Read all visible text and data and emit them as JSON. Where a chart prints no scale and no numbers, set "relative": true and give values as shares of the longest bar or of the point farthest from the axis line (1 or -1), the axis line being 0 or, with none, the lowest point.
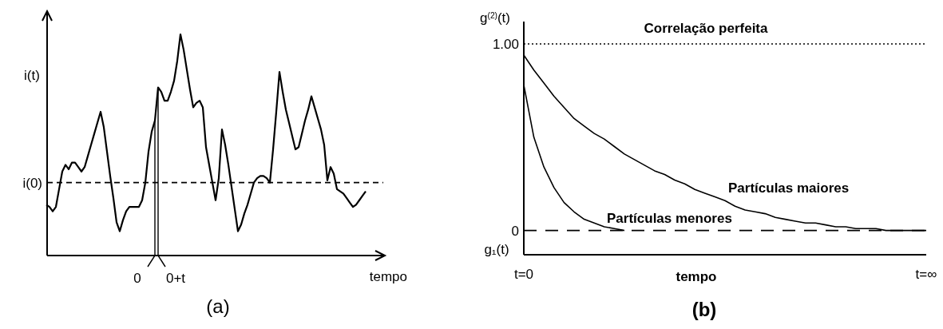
{
  "chart_data": [
    {
      "type": "line",
      "title": "(a)",
      "xlabel": "tempo",
      "ylabel": "i(t)",
      "relative": true,
      "annotations": [
        "0",
        "0+t"
      ],
      "line_style": "solid",
      "categories": [
        null,
        null,
        null,
        null,
        null,
        null,
        null,
        null,
        null,
        null,
        null,
        null,
        null,
        null,
        null,
        null,
        null,
        null,
        null,
        null,
        null,
        null,
        null,
        null,
        null,
        null,
        null,
        null,
        null,
        null,
        null,
        null,
        null,
        null,
        null,
        null,
        null,
        null,
        null,
        null,
        null,
        null,
        null,
        null,
        null,
        null,
        null,
        null,
        null,
        null,
        null,
        null,
        null,
        null,
        null,
        null,
        null,
        null,
        null,
        null,
        null,
        null,
        null,
        null,
        null,
        null,
        null,
        null,
        null,
        null,
        null,
        null,
        null,
        null,
        null,
        null,
        null,
        null,
        null,
        null,
        null,
        null,
        null,
        null,
        null,
        null,
        null,
        null,
        null,
        null,
        null,
        null,
        null,
        null,
        null,
        null,
        null,
        null,
        null,
        null,
        null
      ],
      "series": [
        {
          "color": "#000000",
          "values": [
            0.23,
            0.22,
            0.2,
            0.22,
            0.3,
            0.38,
            0.41,
            0.39,
            0.42,
            0.42,
            0.4,
            0.38,
            0.4,
            0.45,
            0.5,
            0.55,
            0.6,
            0.65,
            0.58,
            0.47,
            0.36,
            0.26,
            0.15,
            0.11,
            0.16,
            0.2,
            0.22,
            0.22,
            0.22,
            0.22,
            0.25,
            0.33,
            0.47,
            0.56,
            0.61,
            0.76,
            0.74,
            0.7,
            0.7,
            0.74,
            0.79,
            0.88,
            1,
            0.93,
            0.84,
            0.75,
            0.67,
            0.69,
            0.7,
            0.67,
            0.49,
            0.41,
            0.33,
            0.25,
            0.35,
            0.57,
            0.5,
            0.41,
            0.31,
            0.21,
            0.11,
            0.14,
            0.19,
            0.23,
            0.28,
            0.33,
            0.35,
            0.36,
            0.36,
            0.35,
            0.33,
            0.48,
            0.65,
            0.83,
            0.74,
            0.66,
            0.6,
            0.54,
            0.48,
            0.49,
            0.55,
            0.61,
            0.66,
            0.72,
            0.67,
            0.62,
            0.57,
            0.5,
            0.34,
            0.4,
            0.37,
            0.3,
            0.29,
            0.28,
            0.26,
            0.24,
            0.22,
            0.23,
            0.25,
            0.27,
            0.29
          ]
        }
      ],
      "ref_lines": [
        {
          "axis": "y",
          "value": 0.33,
          "label": "i(0)",
          "line_style": "dashed"
        }
      ]
    },
    {
      "type": "line",
      "title": "(b)",
      "xlabel": "tempo",
      "ylabel": "g$^{(2)}$(t)",
      "annotations": [
        "g₁(t)"
      ],
      "categories": [
        "t=0",
        null,
        null,
        null,
        null,
        null,
        null,
        null,
        null,
        null,
        null,
        null,
        null,
        null,
        null,
        null,
        null,
        null,
        null,
        null,
        null,
        null,
        null,
        null,
        null,
        null,
        null,
        null,
        null,
        null,
        null,
        null,
        null,
        null,
        null,
        null,
        null,
        null,
        null,
        null,
        "t=∞"
      ],
      "ylim": [
        -0.13,
        1.12
      ],
      "yticks": [
        0,
        {
          "value": 1,
          "label": "1.00"
        }
      ],
      "line_style": "solid",
      "series": [
        {
          "name": "Partículas maiores",
          "color": "#000000",
          "values": [
            0.94,
            0.86,
            0.79,
            0.72,
            0.66,
            0.6,
            0.56,
            0.52,
            0.49,
            0.45,
            0.41,
            0.38,
            0.35,
            0.32,
            0.3,
            0.27,
            0.25,
            0.22,
            0.2,
            0.18,
            0.16,
            0.13,
            0.11,
            0.1,
            0.09,
            0.07,
            0.06,
            0.05,
            0.04,
            0.04,
            0.03,
            0.02,
            0.02,
            0.01,
            0.01,
            0.01,
            0,
            0,
            0,
            0,
            0
          ]
        },
        {
          "name": "Partículas menores",
          "color": "#000000",
          "values": [
            0.78,
            0.5,
            0.34,
            0.23,
            0.15,
            0.1,
            0.06,
            0.04,
            0.02,
            0.01,
            0,
            null,
            null,
            null,
            null,
            null,
            null,
            null,
            null,
            null,
            null,
            null,
            null,
            null,
            null,
            null,
            null,
            null,
            null,
            null,
            null,
            null,
            null,
            null,
            null,
            null,
            null,
            null,
            null,
            null,
            null
          ]
        }
      ],
      "ref_lines": [
        {
          "axis": "y",
          "value": 1,
          "label": "Correlação perfeita",
          "line_style": "dotted"
        },
        {
          "axis": "y",
          "value": 0,
          "line_style": "dashed"
        }
      ]
    }
  ]
}
